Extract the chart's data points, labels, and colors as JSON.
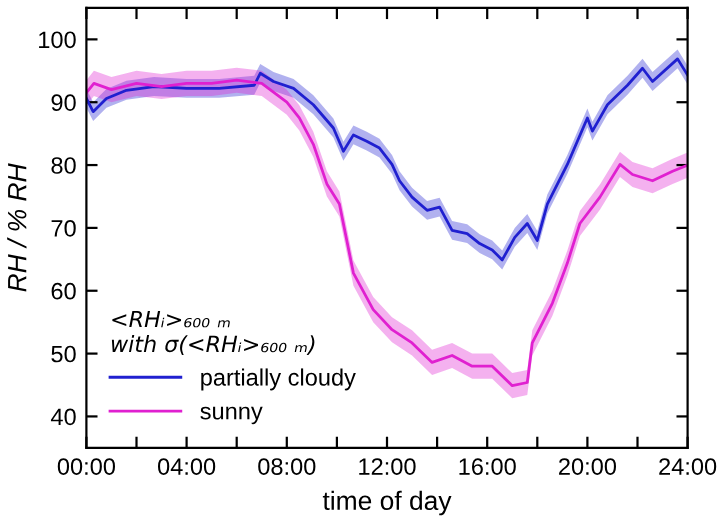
{
  "chart_data": {
    "type": "line",
    "xlabel": "time of day",
    "ylabel": "RH / % RH",
    "legend_title": "<RHᵢ>₆₀₀ ₘ\nwith σ(<RHᵢ>₆₀₀ ₘ)",
    "legend": "bottom left",
    "grid": false,
    "marker": "none",
    "line_style": "solid",
    "xlim": [
      0,
      24
    ],
    "ylim": [
      35,
      105
    ],
    "xticks": [
      {
        "value": 0,
        "label": "00:00"
      },
      {
        "value": 2,
        "label": null
      },
      {
        "value": 4,
        "label": "04:00"
      },
      {
        "value": 6,
        "label": null
      },
      {
        "value": 8,
        "label": "08:00"
      },
      {
        "value": 10,
        "label": null
      },
      {
        "value": 12,
        "label": "12:00"
      },
      {
        "value": 14,
        "label": null
      },
      {
        "value": 16,
        "label": "16:00"
      },
      {
        "value": 18,
        "label": null
      },
      {
        "value": 20,
        "label": "20:00"
      },
      {
        "value": 22,
        "label": null
      },
      {
        "value": 24,
        "label": "24:00"
      }
    ],
    "yticks": [
      40,
      50,
      60,
      70,
      80,
      90,
      100
    ],
    "series": [
      {
        "name": "partially cloudy",
        "color": "#2020d0",
        "x": [
          0,
          0.27,
          0.8,
          1.6,
          2.7,
          4.0,
          5.3,
          6.7,
          6.94,
          7.47,
          8.27,
          9.06,
          9.86,
          10.26,
          10.66,
          11.19,
          11.7,
          12.2,
          12.5,
          13.0,
          13.6,
          14.1,
          14.6,
          15.2,
          15.7,
          16.2,
          16.6,
          17.1,
          17.6,
          18.0,
          18.4,
          19.2,
          20.0,
          20.2,
          20.8,
          21.6,
          22.2,
          22.6,
          23.6,
          24.0
        ],
        "values": [
          90.6,
          88.5,
          90.6,
          91.9,
          92.5,
          92.2,
          92.2,
          92.7,
          94.6,
          93.3,
          92.2,
          89.6,
          85.9,
          82.2,
          84.8,
          83.8,
          82.7,
          80.1,
          77.5,
          74.9,
          72.8,
          73.3,
          69.6,
          69.1,
          67.5,
          66.5,
          64.9,
          68.5,
          70.7,
          68,
          73.8,
          80.1,
          87.5,
          85.4,
          89.6,
          92.7,
          95.4,
          93.3,
          96.9,
          94.3
        ],
        "lower": [
          89.1,
          87,
          89.1,
          90.4,
          91,
          90.7,
          90.7,
          91.2,
          93.1,
          91.8,
          90.7,
          88.1,
          84.4,
          80.7,
          83.3,
          82.3,
          81.2,
          78.6,
          76,
          73.4,
          71.3,
          71.8,
          68.1,
          67.6,
          66,
          65,
          63.4,
          67,
          69.2,
          66.5,
          72.3,
          78.6,
          86,
          83.9,
          88.1,
          91.2,
          93.9,
          91.8,
          95.4,
          92.8
        ],
        "upper": [
          92.1,
          90,
          92.1,
          93.4,
          94,
          93.7,
          93.7,
          94.2,
          96.1,
          94.8,
          93.7,
          91.1,
          87.4,
          83.7,
          86.3,
          85.3,
          84.2,
          81.6,
          79,
          76.4,
          74.3,
          74.8,
          71.1,
          70.6,
          69,
          68,
          66.4,
          70,
          72.2,
          69.5,
          75.3,
          81.6,
          89,
          86.9,
          91.1,
          94.2,
          96.9,
          94.8,
          98.4,
          95.8
        ]
      },
      {
        "name": "sunny",
        "color": "#e020d0",
        "x": [
          0,
          0.3,
          1,
          2,
          3,
          4,
          5,
          6,
          7,
          8,
          8.5,
          9.06,
          9.6,
          10.1,
          10.66,
          11.45,
          12.2,
          13.0,
          13.8,
          14.6,
          15.4,
          16.2,
          17.0,
          17.6,
          17.8,
          18.6,
          19.2,
          19.7,
          20.5,
          21.3,
          21.8,
          22.6,
          23.4,
          24.0
        ],
        "values": [
          91.5,
          93,
          92,
          93,
          92.5,
          93,
          93,
          93.5,
          93,
          90,
          87.5,
          83.3,
          77,
          73.8,
          62.8,
          57,
          53.8,
          51.7,
          48.6,
          49.7,
          48,
          48,
          44.9,
          45.4,
          51.7,
          58,
          64.4,
          70.7,
          74.9,
          80.1,
          78.5,
          77.5,
          79,
          80
        ],
        "lower": [
          89.5,
          91,
          90,
          91,
          90.5,
          91,
          91,
          91.5,
          91,
          88,
          85.5,
          81.3,
          75,
          71.8,
          60.8,
          55,
          51.8,
          49.7,
          46.6,
          47.7,
          46,
          46,
          42.9,
          43.4,
          49.7,
          56,
          62.4,
          68.7,
          72.9,
          78.1,
          76.5,
          75.5,
          77,
          78
        ],
        "upper": [
          93.5,
          95,
          94,
          95,
          94.5,
          95,
          95,
          95.5,
          95,
          92,
          89.5,
          85.3,
          79,
          75.8,
          64.8,
          59,
          55.8,
          53.7,
          50.6,
          51.7,
          50,
          50,
          46.9,
          47.4,
          53.7,
          60,
          66.4,
          72.7,
          76.9,
          82.1,
          80.5,
          79.5,
          81,
          82
        ]
      }
    ]
  }
}
